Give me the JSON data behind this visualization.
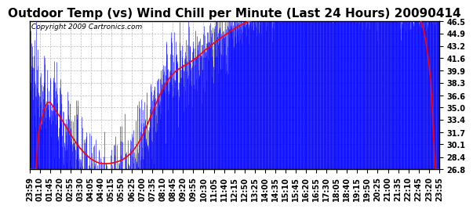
{
  "title": "Outdoor Temp (vs) Wind Chill per Minute (Last 24 Hours) 20090414",
  "copyright_text": "Copyright 2009 Cartronics.com",
  "yticks": [
    26.8,
    28.4,
    30.1,
    31.7,
    33.4,
    35.0,
    36.6,
    38.3,
    39.9,
    41.6,
    43.2,
    44.9,
    46.5
  ],
  "ylim": [
    26.8,
    46.5
  ],
  "xtick_labels": [
    "23:59",
    "01:10",
    "01:45",
    "02:20",
    "02:55",
    "03:30",
    "04:05",
    "04:40",
    "05:15",
    "05:50",
    "06:25",
    "07:00",
    "07:35",
    "08:10",
    "08:45",
    "09:20",
    "09:55",
    "10:30",
    "11:05",
    "11:40",
    "12:15",
    "12:50",
    "13:25",
    "14:00",
    "14:35",
    "15:10",
    "15:45",
    "16:20",
    "16:55",
    "17:30",
    "18:05",
    "18:40",
    "19:15",
    "19:50",
    "20:25",
    "21:00",
    "21:35",
    "22:10",
    "22:45",
    "23:20",
    "23:55"
  ],
  "background_color": "#ffffff",
  "plot_bg_color": "#ffffff",
  "grid_color": "#bbbbbb",
  "blue_color": "#0000ff",
  "red_color": "#ff0000",
  "title_fontsize": 11,
  "tick_fontsize": 7,
  "copyright_fontsize": 6.5
}
